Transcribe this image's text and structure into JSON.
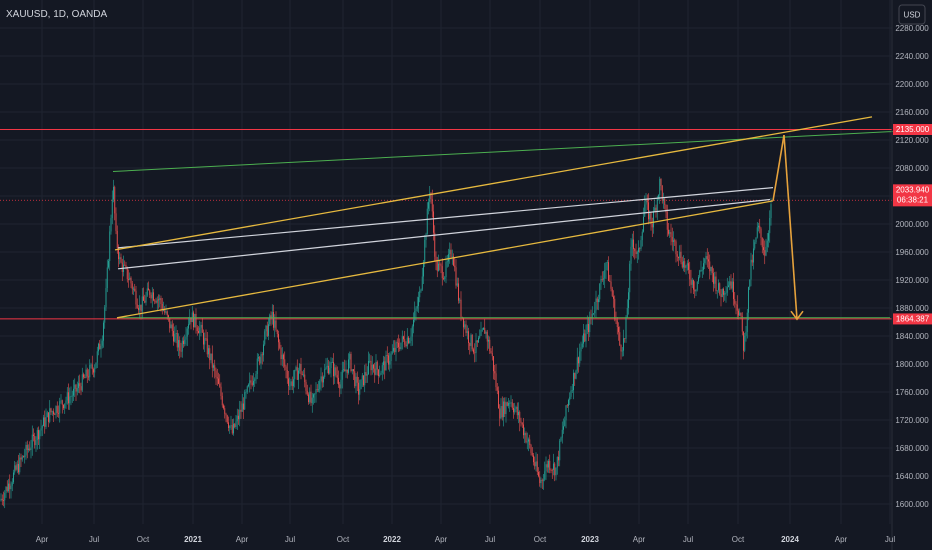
{
  "chart_data": {
    "type": "candlestick",
    "title": "XAUUSD, 1D, OANDA",
    "currency": "USD",
    "y_ticks": [
      1600,
      1640,
      1680,
      1720,
      1760,
      1800,
      1840,
      1880,
      1920,
      1960,
      2000,
      2040,
      2080,
      2120,
      2160,
      2200,
      2240,
      2280
    ],
    "ylim": [
      1587,
      2300
    ],
    "x_ticks": [
      {
        "label": "Apr",
        "bold": false
      },
      {
        "label": "Jul",
        "bold": false
      },
      {
        "label": "Oct",
        "bold": false
      },
      {
        "label": "2021",
        "bold": true
      },
      {
        "label": "Apr",
        "bold": false
      },
      {
        "label": "Jul",
        "bold": false
      },
      {
        "label": "Oct",
        "bold": false
      },
      {
        "label": "2022",
        "bold": true
      },
      {
        "label": "Apr",
        "bold": false
      },
      {
        "label": "Jul",
        "bold": false
      },
      {
        "label": "Oct",
        "bold": false
      },
      {
        "label": "2023",
        "bold": true
      },
      {
        "label": "Apr",
        "bold": false
      },
      {
        "label": "Jul",
        "bold": false
      },
      {
        "label": "Oct",
        "bold": false
      },
      {
        "label": "2024",
        "bold": true
      },
      {
        "label": "Apr",
        "bold": false
      },
      {
        "label": "Jul",
        "bold": false
      }
    ],
    "price_labels": {
      "upper_level": "2135.000",
      "last_price": "2033.940",
      "countdown": "06:38:21",
      "lower_level": "1864.387"
    },
    "levels": [
      {
        "price": 2135,
        "color": "#f23645"
      },
      {
        "price": 2033.94,
        "color": "#f23645"
      },
      {
        "price": 1864.387,
        "color": "#f23645"
      }
    ],
    "price_path": [
      [
        0,
        1605
      ],
      [
        25,
        1672
      ],
      [
        50,
        1730
      ],
      [
        75,
        1760
      ],
      [
        95,
        1800
      ],
      [
        102,
        1840
      ],
      [
        106,
        1900
      ],
      [
        110,
        1990
      ],
      [
        113,
        2060
      ],
      [
        116,
        1980
      ],
      [
        120,
        1945
      ],
      [
        130,
        1920
      ],
      [
        140,
        1880
      ],
      [
        150,
        1905
      ],
      [
        160,
        1890
      ],
      [
        170,
        1855
      ],
      [
        180,
        1820
      ],
      [
        190,
        1870
      ],
      [
        200,
        1850
      ],
      [
        210,
        1810
      ],
      [
        220,
        1760
      ],
      [
        232,
        1700
      ],
      [
        240,
        1730
      ],
      [
        250,
        1770
      ],
      [
        260,
        1810
      ],
      [
        265,
        1840
      ],
      [
        272,
        1870
      ],
      [
        280,
        1820
      ],
      [
        290,
        1770
      ],
      [
        300,
        1795
      ],
      [
        312,
        1740
      ],
      [
        320,
        1780
      ],
      [
        330,
        1800
      ],
      [
        340,
        1775
      ],
      [
        350,
        1805
      ],
      [
        358,
        1760
      ],
      [
        370,
        1800
      ],
      [
        380,
        1790
      ],
      [
        390,
        1810
      ],
      [
        400,
        1830
      ],
      [
        410,
        1840
      ],
      [
        420,
        1900
      ],
      [
        430,
        2055
      ],
      [
        436,
        1940
      ],
      [
        445,
        1930
      ],
      [
        452,
        1965
      ],
      [
        460,
        1880
      ],
      [
        468,
        1840
      ],
      [
        475,
        1820
      ],
      [
        485,
        1850
      ],
      [
        492,
        1810
      ],
      [
        500,
        1730
      ],
      [
        510,
        1750
      ],
      [
        520,
        1720
      ],
      [
        530,
        1680
      ],
      [
        540,
        1630
      ],
      [
        548,
        1660
      ],
      [
        556,
        1650
      ],
      [
        562,
        1700
      ],
      [
        570,
        1760
      ],
      [
        580,
        1820
      ],
      [
        590,
        1860
      ],
      [
        600,
        1910
      ],
      [
        606,
        1945
      ],
      [
        612,
        1900
      ],
      [
        620,
        1825
      ],
      [
        625,
        1835
      ],
      [
        632,
        1980
      ],
      [
        638,
        1950
      ],
      [
        645,
        2030
      ],
      [
        652,
        2000
      ],
      [
        660,
        2060
      ],
      [
        668,
        1990
      ],
      [
        675,
        1970
      ],
      [
        685,
        1940
      ],
      [
        695,
        1910
      ],
      [
        705,
        1950
      ],
      [
        712,
        1930
      ],
      [
        720,
        1900
      ],
      [
        730,
        1920
      ],
      [
        740,
        1870
      ],
      [
        744,
        1820
      ],
      [
        750,
        1930
      ],
      [
        758,
        1995
      ],
      [
        765,
        1960
      ],
      [
        772,
        2030
      ]
    ],
    "drawings": {
      "top_channel_line": {
        "color": "#e6b93f",
        "from": {
          "x": 115,
          "price": 1963
        },
        "to": {
          "x": 872,
          "price": 2153
        }
      },
      "bottom_channel_line": {
        "color": "#e6b93f",
        "from": {
          "x": 117,
          "price": 1866
        },
        "to": {
          "x": 773,
          "price": 2033
        }
      },
      "green_trendline": {
        "color": "#4caf50",
        "from": {
          "x": 113,
          "price": 2075
        },
        "to": {
          "x": 932,
          "price": 2135
        }
      },
      "green_horizontal": {
        "color": "#4caf50",
        "price": 1866,
        "from_x": 117,
        "to_x": 890
      },
      "white_line_1": {
        "color": "#d1d4dc",
        "from": {
          "x": 118,
          "price": 1966
        },
        "to": {
          "x": 773,
          "price": 2052
        }
      },
      "white_line_2": {
        "color": "#d1d4dc",
        "from": {
          "x": 118,
          "price": 1936
        },
        "to": {
          "x": 770,
          "price": 2035
        }
      },
      "orange_leg_up": {
        "color": "#e6a23c",
        "from": {
          "x": 773,
          "price": 2033
        },
        "to": {
          "x": 784,
          "price": 2127
        }
      },
      "orange_leg_down": {
        "color": "#e6a23c",
        "from": {
          "x": 784,
          "price": 2127
        },
        "to": {
          "x": 797,
          "price": 1864
        }
      }
    }
  }
}
